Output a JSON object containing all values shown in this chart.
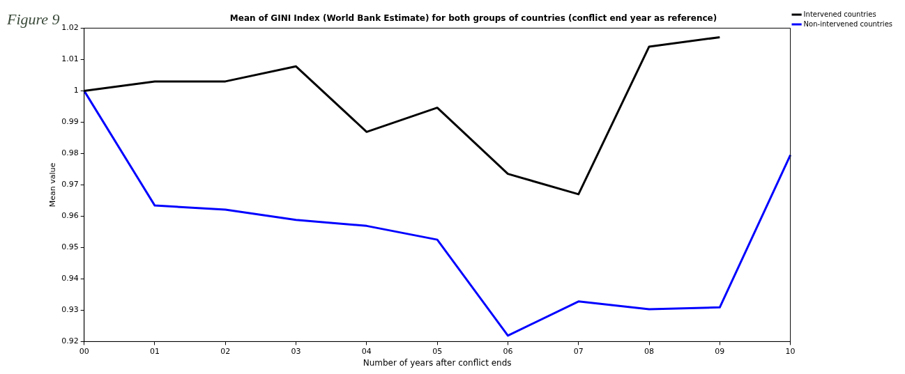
{
  "chart_data": {
    "type": "line",
    "title": "Mean of GINI Index (World Bank Estimate) for both groups of countries (conflict end year as reference)",
    "xlabel": "Number of years after conflict ends",
    "ylabel": "Mean value",
    "annotations": [
      "Figure 9"
    ],
    "categories": [
      "00",
      "01",
      "02",
      "03",
      "04",
      "05",
      "06",
      "07",
      "08",
      "09",
      "10"
    ],
    "series": [
      {
        "name": "Intervened countries",
        "color": "#000000",
        "values": [
          1.0,
          1.003,
          1.003,
          1.0078,
          0.9869,
          0.9946,
          0.9735,
          0.967,
          1.0141,
          1.0171,
          null
        ]
      },
      {
        "name": "Non-intervened countries",
        "color": "#0000ff",
        "values": [
          1.0,
          0.9634,
          0.9621,
          0.9588,
          0.9569,
          0.9525,
          0.9219,
          0.9328,
          0.9303,
          0.9309,
          0.9795
        ]
      }
    ],
    "ylim": [
      0.92,
      1.02
    ],
    "yticks": [
      0.92,
      0.93,
      0.94,
      0.95,
      0.96,
      0.97,
      0.98,
      0.99,
      1,
      1.01,
      1.02
    ],
    "grid": false,
    "legend": "top right",
    "marker": "none",
    "line_style": "solid"
  }
}
